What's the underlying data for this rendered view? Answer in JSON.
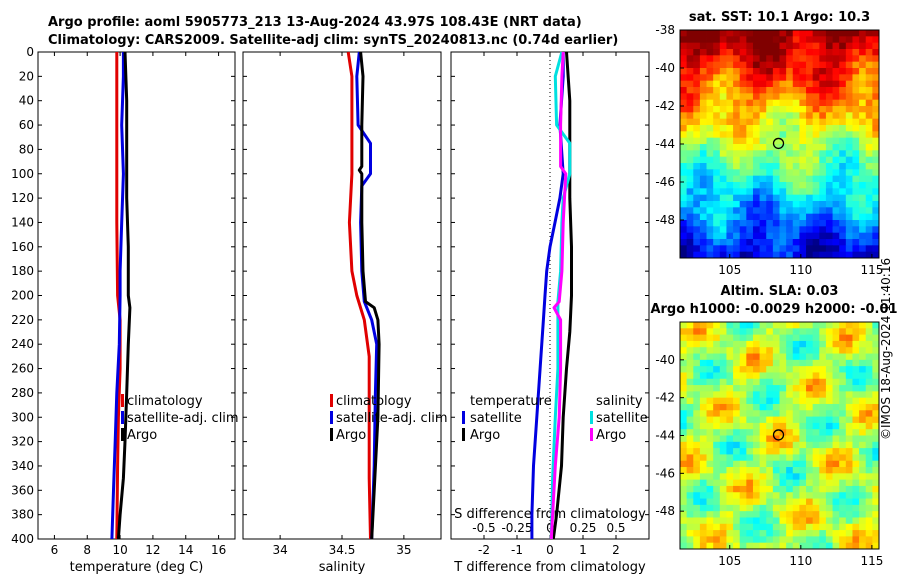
{
  "header": {
    "line1": "Argo profile: aoml 5905773_213 13-Aug-2024 43.97S 108.43E (NRT data)",
    "line2": "Climatology: CARS2009. Satellite-adj clim: synTS_20240813.nc (0.74d earlier)"
  },
  "credit": "©IMOS 18-Aug-2024 11:40:16",
  "colors": {
    "climatology": "#e00000",
    "satellite": "#0000e0",
    "argo": "#000000",
    "salinity_sat": "#00e0e0",
    "salinity_argo": "#ff00ff"
  },
  "depth_ticks": [
    0,
    20,
    40,
    60,
    80,
    100,
    120,
    140,
    160,
    180,
    200,
    220,
    240,
    260,
    280,
    300,
    320,
    340,
    360,
    380,
    400
  ],
  "chart_data": [
    {
      "type": "line",
      "name": "temperature",
      "xlabel": "temperature (deg C)",
      "ylabel": "depth",
      "xlim": [
        5,
        17
      ],
      "ylim": [
        400,
        0
      ],
      "xticks": [
        6,
        8,
        10,
        12,
        14,
        16
      ],
      "legend": [
        "climatology",
        "satellite-adj. clim",
        "Argo"
      ],
      "series": [
        {
          "name": "climatology",
          "color": "#e00000",
          "points": [
            [
              9.8,
              0
            ],
            [
              9.8,
              20
            ],
            [
              9.8,
              60
            ],
            [
              9.8,
              100
            ],
            [
              9.8,
              140
            ],
            [
              9.85,
              200
            ],
            [
              10.0,
              220
            ],
            [
              10.0,
              260
            ],
            [
              9.9,
              300
            ],
            [
              9.85,
              340
            ],
            [
              9.8,
              400
            ]
          ]
        },
        {
          "name": "satellite-adj. clim",
          "color": "#0000e0",
          "points": [
            [
              10.2,
              0
            ],
            [
              10.2,
              20
            ],
            [
              10.1,
              60
            ],
            [
              10.2,
              100
            ],
            [
              10.1,
              140
            ],
            [
              10.0,
              180
            ],
            [
              10.0,
              200
            ],
            [
              9.95,
              240
            ],
            [
              9.8,
              280
            ],
            [
              9.7,
              320
            ],
            [
              9.6,
              360
            ],
            [
              9.5,
              400
            ]
          ]
        },
        {
          "name": "Argo",
          "color": "#000000",
          "points": [
            [
              10.3,
              0
            ],
            [
              10.4,
              40
            ],
            [
              10.4,
              80
            ],
            [
              10.4,
              120
            ],
            [
              10.5,
              160
            ],
            [
              10.5,
              200
            ],
            [
              10.6,
              210
            ],
            [
              10.5,
              240
            ],
            [
              10.4,
              280
            ],
            [
              10.3,
              320
            ],
            [
              10.2,
              350
            ],
            [
              10.0,
              380
            ],
            [
              9.9,
              400
            ]
          ]
        }
      ]
    },
    {
      "type": "line",
      "name": "salinity",
      "xlabel": "salinity",
      "ylabel": "depth",
      "xlim": [
        33.7,
        35.3
      ],
      "ylim": [
        400,
        0
      ],
      "xticks": [
        34,
        34.5,
        35
      ],
      "legend": [
        "climatology",
        "satellite-adj. clim",
        "Argo"
      ],
      "series": [
        {
          "name": "climatology",
          "color": "#e00000",
          "points": [
            [
              34.55,
              0
            ],
            [
              34.58,
              20
            ],
            [
              34.58,
              60
            ],
            [
              34.58,
              100
            ],
            [
              34.56,
              140
            ],
            [
              34.58,
              180
            ],
            [
              34.62,
              200
            ],
            [
              34.68,
              220
            ],
            [
              34.72,
              250
            ],
            [
              34.72,
              300
            ],
            [
              34.72,
              350
            ],
            [
              34.73,
              400
            ]
          ]
        },
        {
          "name": "satellite-adj. clim",
          "color": "#0000e0",
          "points": [
            [
              34.64,
              0
            ],
            [
              34.62,
              20
            ],
            [
              34.63,
              60
            ],
            [
              34.73,
              75
            ],
            [
              34.73,
              100
            ],
            [
              34.66,
              110
            ],
            [
              34.65,
              140
            ],
            [
              34.66,
              180
            ],
            [
              34.68,
              205
            ],
            [
              34.74,
              220
            ],
            [
              34.78,
              240
            ],
            [
              34.77,
              280
            ],
            [
              34.76,
              340
            ],
            [
              34.74,
              400
            ]
          ]
        },
        {
          "name": "Argo",
          "color": "#000000",
          "points": [
            [
              34.65,
              0
            ],
            [
              34.67,
              20
            ],
            [
              34.66,
              60
            ],
            [
              34.66,
              94
            ],
            [
              34.64,
              97
            ],
            [
              34.66,
              100
            ],
            [
              34.66,
              140
            ],
            [
              34.67,
              180
            ],
            [
              34.69,
              205
            ],
            [
              34.76,
              210
            ],
            [
              34.79,
              220
            ],
            [
              34.8,
              240
            ],
            [
              34.79,
              300
            ],
            [
              34.76,
              360
            ],
            [
              34.74,
              400
            ]
          ]
        }
      ]
    },
    {
      "type": "line",
      "name": "difference",
      "xlabel": "T difference from climatology",
      "x2label": "S difference from climatology",
      "ylabel": "depth",
      "xlim": [
        -3,
        3
      ],
      "ylim": [
        400,
        0
      ],
      "xticks": [
        -2,
        -1,
        0,
        1,
        2
      ],
      "xtick_labels": [
        "-2",
        "-1",
        "0",
        "1",
        "2"
      ],
      "s_xlim": [
        -0.75,
        0.75
      ],
      "s_xticks": [
        -0.5,
        -0.25,
        0,
        0.25,
        0.5
      ],
      "s_xtick_labels": [
        "-0.5",
        "-0.25",
        "0",
        "0.25",
        "0.5"
      ],
      "legend_temperature": [
        "temperature",
        "satellite",
        "Argo"
      ],
      "legend_salinity": [
        "salinity",
        "satellite",
        "Argo"
      ],
      "series": [
        {
          "name": "temperature satellite",
          "color": "#0000e0",
          "points": [
            [
              0.4,
              0
            ],
            [
              0.4,
              20
            ],
            [
              0.3,
              60
            ],
            [
              0.4,
              100
            ],
            [
              0.3,
              120
            ],
            [
              0.15,
              140
            ],
            [
              0.0,
              160
            ],
            [
              -0.1,
              180
            ],
            [
              -0.15,
              200
            ],
            [
              -0.2,
              220
            ],
            [
              -0.3,
              260
            ],
            [
              -0.4,
              300
            ],
            [
              -0.5,
              340
            ],
            [
              -0.55,
              380
            ],
            [
              -0.55,
              400
            ]
          ]
        },
        {
          "name": "temperature Argo",
          "color": "#000000",
          "points": [
            [
              0.5,
              0
            ],
            [
              0.6,
              40
            ],
            [
              0.6,
              80
            ],
            [
              0.6,
              120
            ],
            [
              0.65,
              160
            ],
            [
              0.65,
              200
            ],
            [
              0.6,
              230
            ],
            [
              0.5,
              260
            ],
            [
              0.4,
              300
            ],
            [
              0.35,
              340
            ],
            [
              0.2,
              380
            ],
            [
              0.1,
              400
            ]
          ]
        },
        {
          "name": "salinity satellite",
          "color": "#00e0e0",
          "points": [
            [
              0.09,
              0
            ],
            [
              0.04,
              20
            ],
            [
              0.05,
              60
            ],
            [
              0.15,
              75
            ],
            [
              0.15,
              100
            ],
            [
              0.1,
              120
            ],
            [
              0.09,
              140
            ],
            [
              0.08,
              180
            ],
            [
              0.06,
              205
            ],
            [
              0.06,
              220
            ],
            [
              0.06,
              260
            ],
            [
              0.04,
              300
            ],
            [
              0.02,
              350
            ],
            [
              0.01,
              400
            ]
          ]
        },
        {
          "name": "salinity Argo",
          "color": "#ff00ff",
          "points": [
            [
              0.1,
              0
            ],
            [
              0.09,
              20
            ],
            [
              0.08,
              60
            ],
            [
              0.08,
              80
            ],
            [
              0.08,
              94
            ],
            [
              0.12,
              100
            ],
            [
              0.1,
              140
            ],
            [
              0.09,
              180
            ],
            [
              0.07,
              205
            ],
            [
              0.03,
              210
            ],
            [
              0.08,
              220
            ],
            [
              0.08,
              260
            ],
            [
              0.07,
              300
            ],
            [
              0.04,
              340
            ],
            [
              0.01,
              400
            ]
          ]
        }
      ]
    },
    {
      "type": "heatmap",
      "name": "sat_sst",
      "title": "sat. SST: 10.1 Argo: 10.3",
      "xlim": [
        101.5,
        115.5
      ],
      "ylim": [
        -50,
        -38
      ],
      "xticks": [
        105,
        110,
        115
      ],
      "yticks": [
        -38,
        -40,
        -42,
        -44,
        -46,
        -48
      ],
      "marker": {
        "lon": 108.43,
        "lat": -43.97
      }
    },
    {
      "type": "heatmap",
      "name": "altim_sla",
      "title": "Altim. SLA: 0.03",
      "title2": "Argo h1000: -0.0029 h2000: -0.01",
      "xlim": [
        101.5,
        115.5
      ],
      "ylim": [
        -50,
        -38
      ],
      "xticks": [
        105,
        110,
        115
      ],
      "yticks": [
        -40,
        -42,
        -44,
        -46,
        -48
      ],
      "marker": {
        "lon": 108.43,
        "lat": -43.97
      }
    }
  ]
}
